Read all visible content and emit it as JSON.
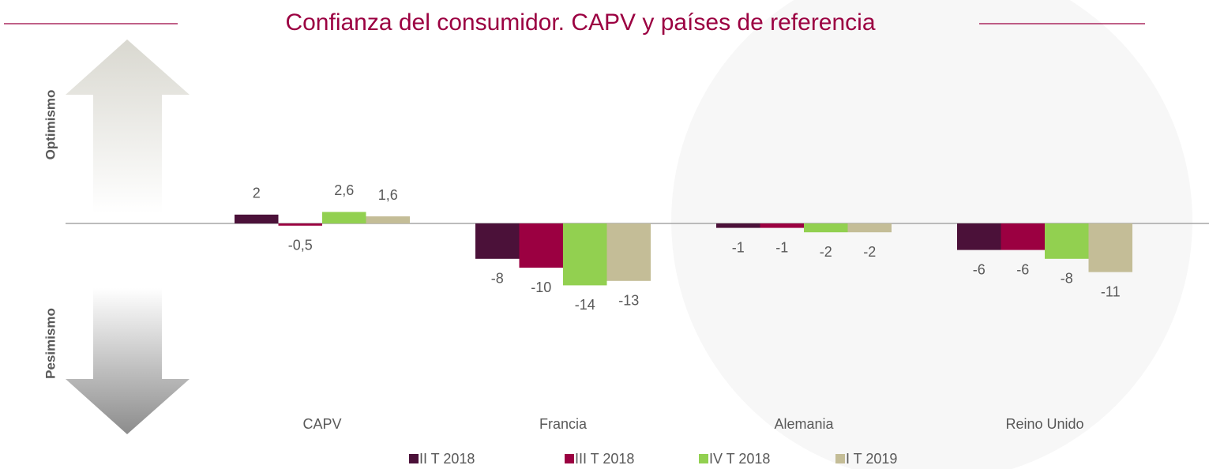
{
  "chart_data": {
    "type": "bar",
    "title": "Confianza del consumidor. CAPV y países de referencia",
    "annotations": [
      "Optimismo",
      "Pesimismo"
    ],
    "categories": [
      "CAPV",
      "Francia",
      "Alemania",
      "Reino Unido"
    ],
    "series": [
      {
        "name": "II T 2018",
        "color": "#4b1139",
        "values": [
          2,
          -8,
          -1,
          -6
        ],
        "value_labels": [
          "2",
          "-8",
          "-1",
          "-6"
        ]
      },
      {
        "name": "III T 2018",
        "color": "#9b0041",
        "values": [
          -0.5,
          -10,
          -1,
          -6
        ],
        "value_labels": [
          "-0,5",
          "-10",
          "-1",
          "-6"
        ]
      },
      {
        "name": "IV T 2018",
        "color": "#92d050",
        "values": [
          2.6,
          -14,
          -2,
          -8
        ],
        "value_labels": [
          "2,6",
          "-14",
          "-2",
          "-8"
        ]
      },
      {
        "name": "I T 2019",
        "color": "#c4bd97",
        "values": [
          1.6,
          -13,
          -2,
          -11
        ],
        "value_labels": [
          "1,6",
          "-13",
          "-2",
          "-11"
        ]
      }
    ]
  }
}
